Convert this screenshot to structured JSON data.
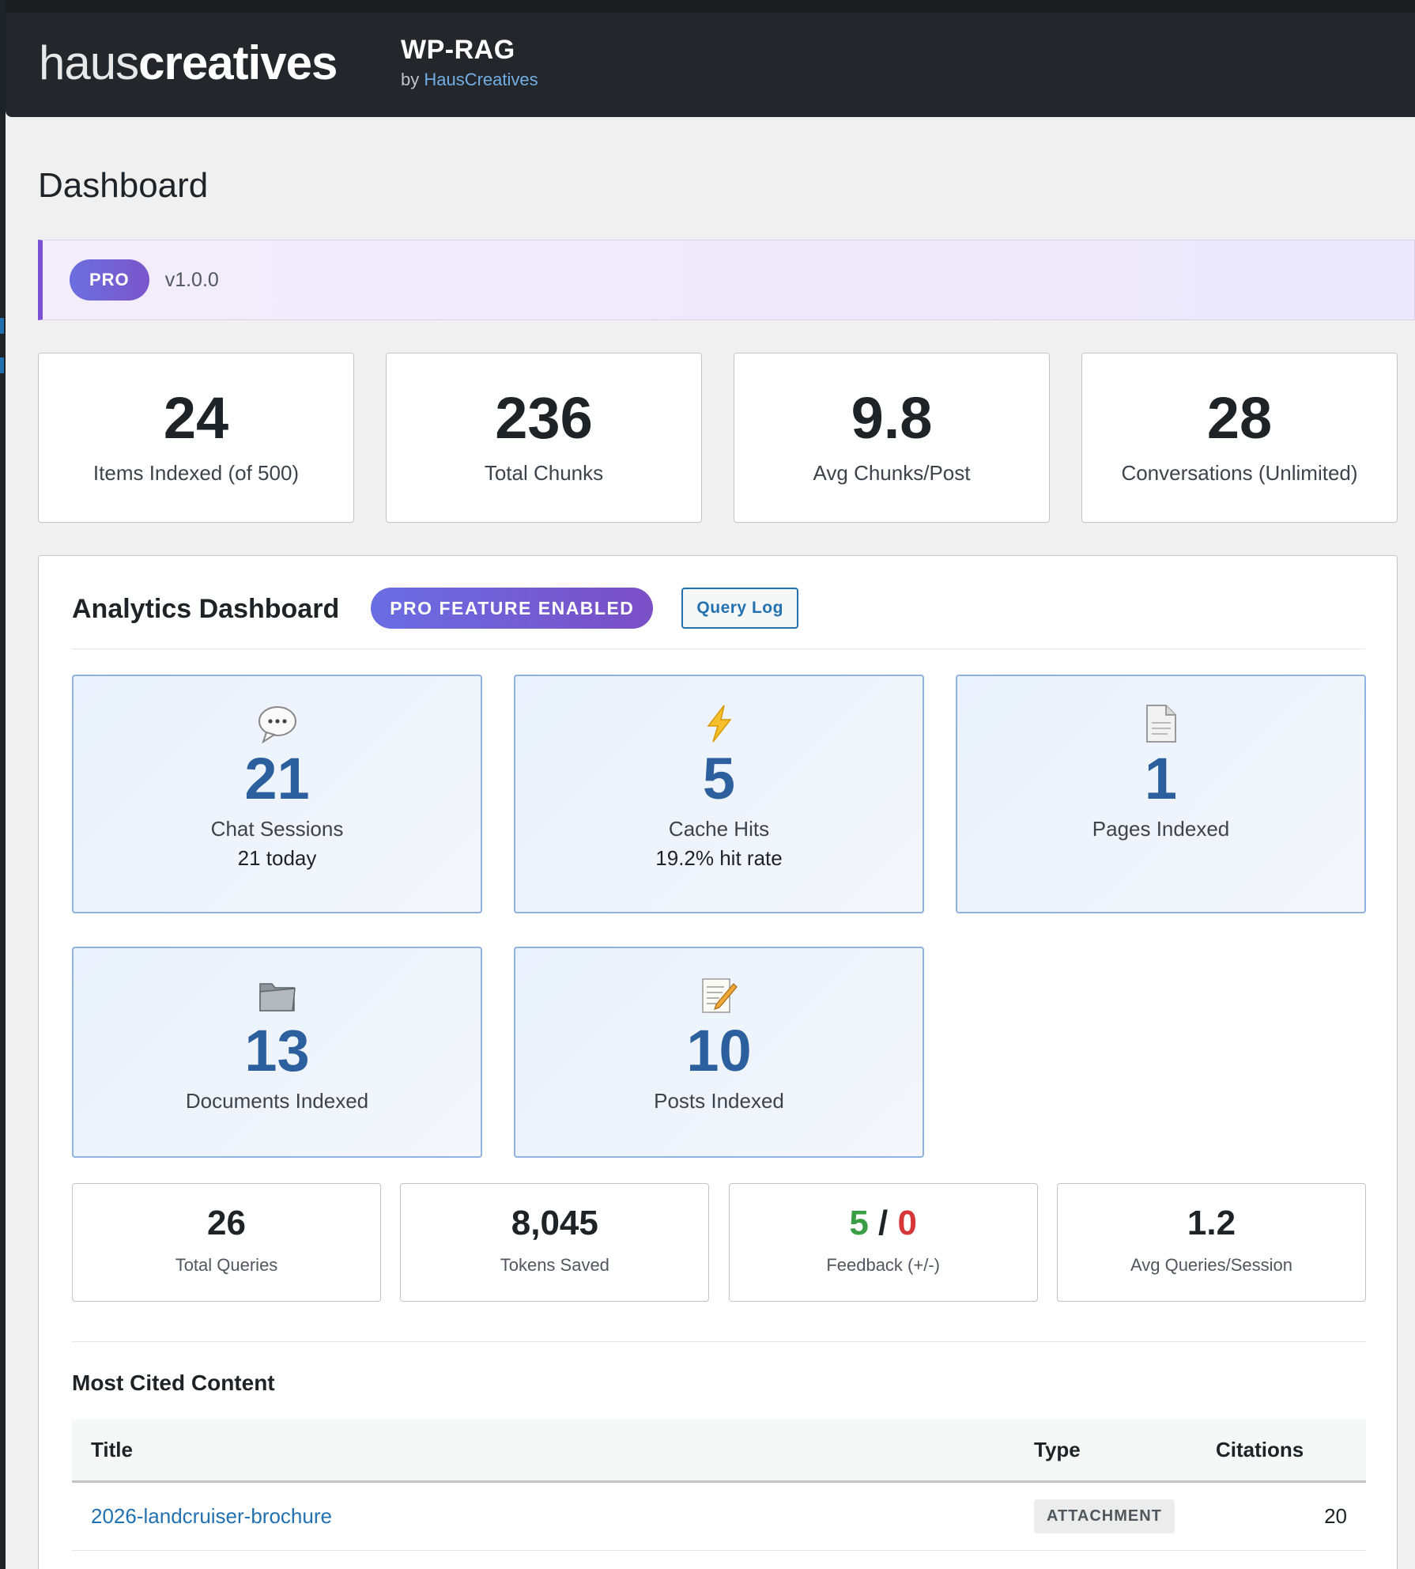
{
  "header": {
    "logo_light": "haus",
    "logo_bold": "creatives",
    "plugin_title": "WP-RAG",
    "by_prefix": "by ",
    "by_link": "HausCreatives"
  },
  "page": {
    "title": "Dashboard"
  },
  "version_bar": {
    "badge": "PRO",
    "version": "v1.0.0"
  },
  "stats": [
    {
      "value": "24",
      "label": "Items Indexed (of 500)"
    },
    {
      "value": "236",
      "label": "Total Chunks"
    },
    {
      "value": "9.8",
      "label": "Avg Chunks/Post"
    },
    {
      "value": "28",
      "label": "Conversations (Unlimited)"
    }
  ],
  "analytics": {
    "title": "Analytics Dashboard",
    "pro_badge": "PRO FEATURE ENABLED",
    "query_log_button": "Query Log",
    "metrics": [
      {
        "icon": "speech-bubble-icon",
        "value": "21",
        "label": "Chat Sessions",
        "sub": "21 today"
      },
      {
        "icon": "lightning-icon",
        "value": "5",
        "label": "Cache Hits",
        "sub": "19.2% hit rate"
      },
      {
        "icon": "page-icon",
        "value": "1",
        "label": "Pages Indexed",
        "sub": ""
      },
      {
        "icon": "folder-icon",
        "value": "13",
        "label": "Documents Indexed",
        "sub": ""
      },
      {
        "icon": "memo-icon",
        "value": "10",
        "label": "Posts Indexed",
        "sub": ""
      }
    ],
    "small_stats": [
      {
        "value": "26",
        "label": "Total Queries"
      },
      {
        "value": "8,045",
        "label": "Tokens Saved"
      },
      {
        "positive": "5",
        "separator": " / ",
        "negative": "0",
        "label": "Feedback (+/-)"
      },
      {
        "value": "1.2",
        "label": "Avg Queries/Session"
      }
    ]
  },
  "most_cited": {
    "title": "Most Cited Content",
    "columns": {
      "title": "Title",
      "type": "Type",
      "citations": "Citations"
    },
    "rows": [
      {
        "title": "2026-landcruiser-brochure",
        "type": "ATTACHMENT",
        "citations": "20"
      }
    ]
  },
  "colors": {
    "accent_blue": "#2271b1",
    "metric_blue": "#2c5f9e",
    "pro_purple": "#7b4fd6",
    "positive_green": "#3a9e44",
    "negative_red": "#d63638"
  }
}
